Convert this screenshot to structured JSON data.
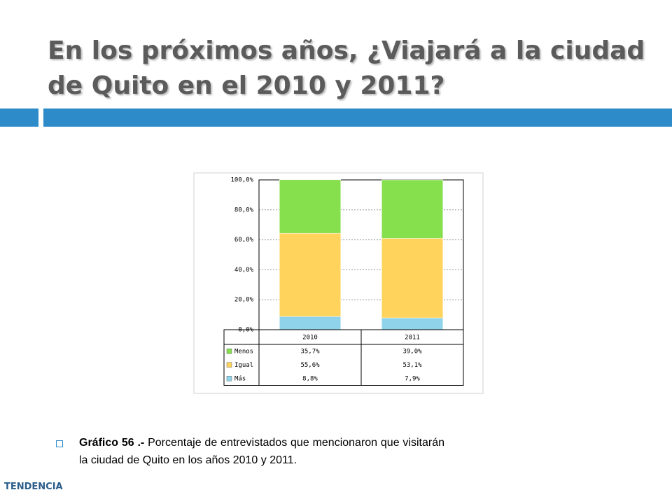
{
  "title": "En los próximos años, ¿Viajará a la ciudad de Quito en el 2010 y 2011?",
  "caption": {
    "label": "Gráfico 56 .-",
    "text": "Porcentaje de entrevistados que mencionaron que visitarán la ciudad de Quito en los años 2010 y 2011."
  },
  "logo": "TENDENCIA",
  "chart_data": {
    "type": "stacked-bar",
    "categories": [
      "2010",
      "2011"
    ],
    "series": [
      {
        "name": "Menos",
        "color": "#86e04e",
        "values": [
          35.7,
          39.0
        ],
        "value_labels": [
          "35,7%",
          "39,0%"
        ]
      },
      {
        "name": "Igual",
        "color": "#ffd35c",
        "values": [
          55.6,
          53.1
        ],
        "value_labels": [
          "55,6%",
          "53,1%"
        ]
      },
      {
        "name": "Más",
        "color": "#8fd3ea",
        "values": [
          8.8,
          7.9
        ],
        "value_labels": [
          "8,8%",
          "7,9%"
        ]
      }
    ],
    "ylim": [
      0,
      100
    ],
    "yticks": [
      {
        "value": 0,
        "label": "0,0%"
      },
      {
        "value": 20,
        "label": "20,0%"
      },
      {
        "value": 40,
        "label": "40,0%"
      },
      {
        "value": 60,
        "label": "60,0%"
      },
      {
        "value": 80,
        "label": "80,0%"
      },
      {
        "value": 100,
        "label": "100,0%"
      }
    ],
    "grid": true
  }
}
